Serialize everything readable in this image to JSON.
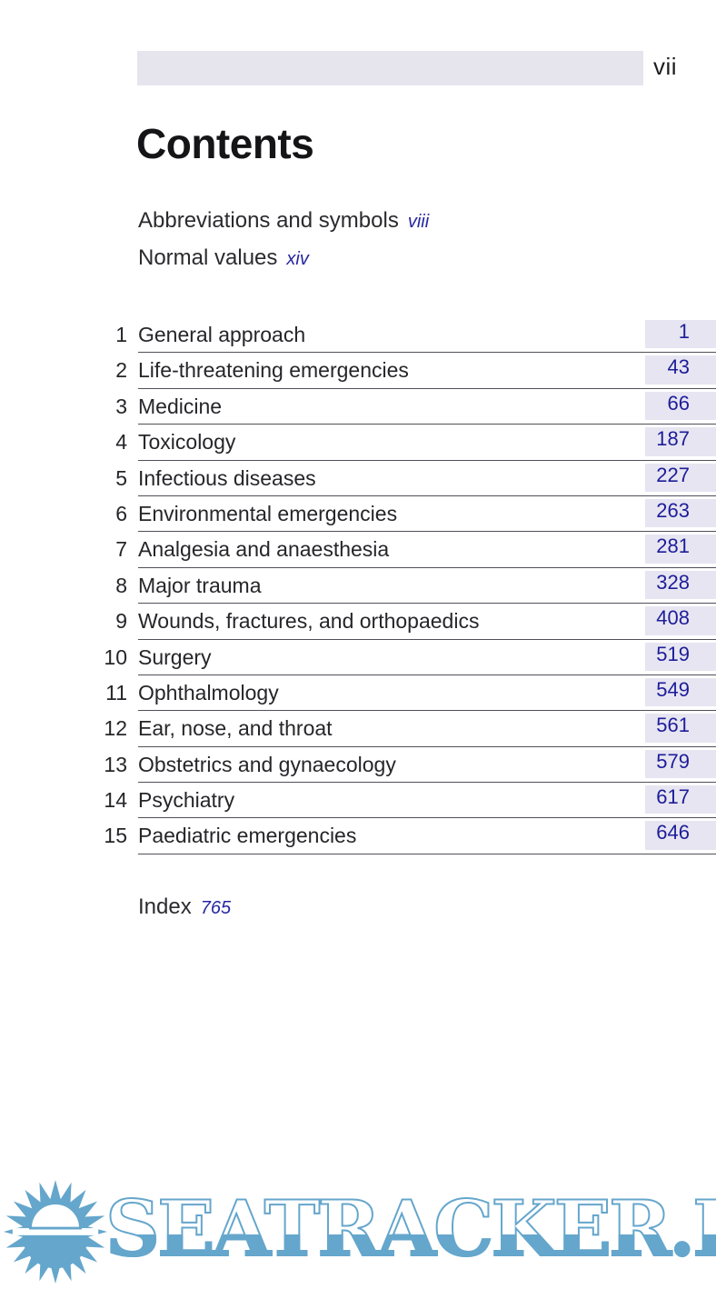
{
  "page": {
    "folio": "vii",
    "title": "Contents"
  },
  "front_matter": [
    {
      "label": "Abbreviations and symbols",
      "page": "viii"
    },
    {
      "label": "Normal values",
      "page": "xiv"
    }
  ],
  "chapters": [
    {
      "num": "1",
      "title": "General approach",
      "page": "1"
    },
    {
      "num": "2",
      "title": "Life-threatening emergencies",
      "page": "43"
    },
    {
      "num": "3",
      "title": "Medicine",
      "page": "66"
    },
    {
      "num": "4",
      "title": "Toxicology",
      "page": "187"
    },
    {
      "num": "5",
      "title": "Infectious diseases",
      "page": "227"
    },
    {
      "num": "6",
      "title": "Environmental emergencies",
      "page": "263"
    },
    {
      "num": "7",
      "title": "Analgesia and anaesthesia",
      "page": "281"
    },
    {
      "num": "8",
      "title": "Major trauma",
      "page": "328"
    },
    {
      "num": "9",
      "title": "Wounds, fractures, and orthopaedics",
      "page": "408"
    },
    {
      "num": "10",
      "title": "Surgery",
      "page": "519"
    },
    {
      "num": "11",
      "title": "Ophthalmology",
      "page": "549"
    },
    {
      "num": "12",
      "title": "Ear, nose, and throat",
      "page": "561"
    },
    {
      "num": "13",
      "title": "Obstetrics and gynaecology",
      "page": "579"
    },
    {
      "num": "14",
      "title": "Psychiatry",
      "page": "617"
    },
    {
      "num": "15",
      "title": "Paediatric emergencies",
      "page": "646"
    }
  ],
  "back_matter": {
    "label": "Index",
    "page": "765"
  },
  "watermark": {
    "text": "SEATRACKER.RU",
    "logo": "sun-logo"
  },
  "colors": {
    "page_box_fill": "#e7e5f1",
    "page_number_blue": "#1d1d99",
    "front_ref_blue": "#2727a2",
    "rule_gray": "#50505a",
    "runhead_bar": "#e6e5ee",
    "watermark_blue": "#65a6cc"
  }
}
